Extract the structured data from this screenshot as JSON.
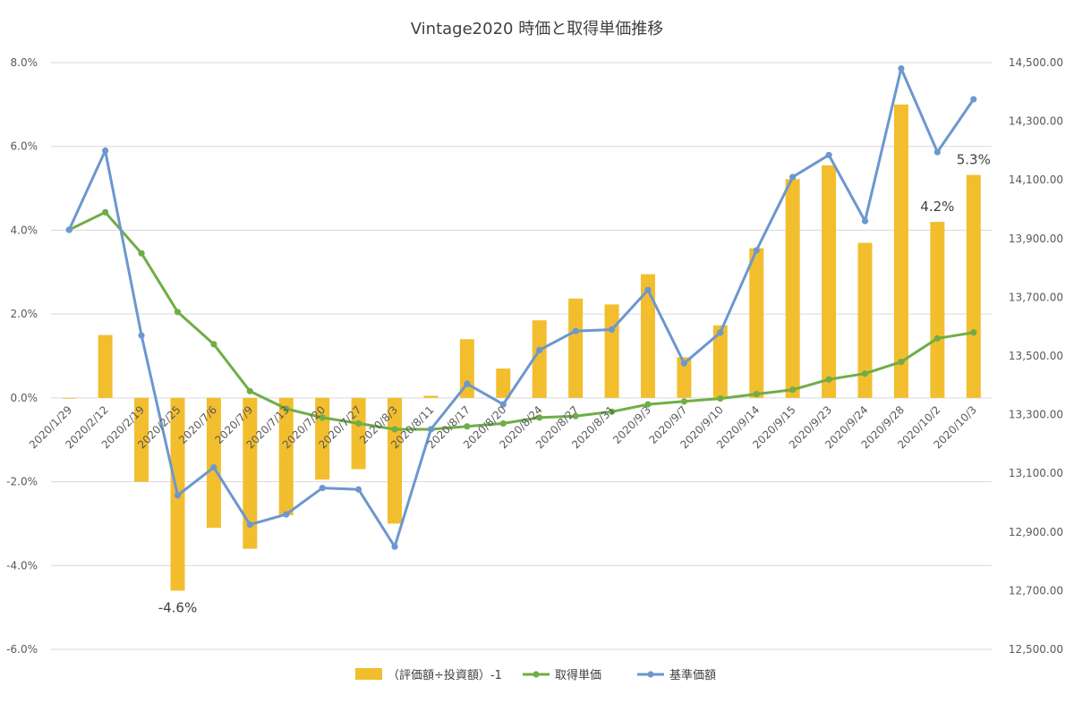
{
  "chart_data": {
    "type": "bar+line",
    "title": "Vintage2020 時価と取得単価推移",
    "categories": [
      "2020/1/29",
      "2020/2/12",
      "2020/2/19",
      "2020/2/25",
      "2020/7/6",
      "2020/7/9",
      "2020/7/13",
      "2020/7/20",
      "2020/7/27",
      "2020/8/3",
      "2020/8/11",
      "2020/8/17",
      "2020/8/20",
      "2020/8/24",
      "2020/8/27",
      "2020/8/31",
      "2020/9/3",
      "2020/9/7",
      "2020/9/10",
      "2020/9/14",
      "2020/9/15",
      "2020/9/23",
      "2020/9/24",
      "2020/9/28",
      "2020/10/2",
      "2020/10/3"
    ],
    "y_left": {
      "ticks": [
        "-6.0%",
        "-4.0%",
        "-2.0%",
        "0.0%",
        "2.0%",
        "4.0%",
        "6.0%",
        "8.0%"
      ],
      "min": -6,
      "max": 8,
      "unit": "%"
    },
    "y_right": {
      "ticks": [
        "12,500.00",
        "12,700.00",
        "12,900.00",
        "13,100.00",
        "13,300.00",
        "13,500.00",
        "13,700.00",
        "13,900.00",
        "14,100.00",
        "14,300.00",
        "14,500.00"
      ],
      "min": 12500,
      "max": 14500
    },
    "series": [
      {
        "name": "（評価額÷投資額）-1",
        "kind": "bar",
        "axis": "left",
        "color": "#F2BE2E",
        "values": [
          0.0,
          1.5,
          -2.0,
          -4.6,
          -3.1,
          -3.6,
          -2.8,
          -1.95,
          -1.7,
          -3.0,
          0.05,
          1.4,
          0.7,
          1.85,
          2.37,
          2.23,
          2.95,
          0.97,
          1.73,
          3.57,
          5.22,
          5.55,
          3.7,
          7.0,
          4.2,
          5.32
        ]
      },
      {
        "name": "取得単価",
        "kind": "line",
        "axis": "right",
        "color": "#70AD47",
        "values": [
          13930,
          13990,
          13850,
          13650,
          13540,
          13380,
          13320,
          13290,
          13270,
          13250,
          13250,
          13260,
          13270,
          13290,
          13295,
          13310,
          13335,
          13345,
          13355,
          13370,
          13385,
          13420,
          13440,
          13480,
          13560,
          13580
        ]
      },
      {
        "name": "基準価額",
        "kind": "line",
        "axis": "right",
        "color": "#6C97CF",
        "values": [
          13930,
          14200,
          13570,
          13025,
          13120,
          12925,
          12960,
          13050,
          13045,
          12850,
          13250,
          13405,
          13335,
          13520,
          13585,
          13590,
          13725,
          13475,
          13580,
          13860,
          14110,
          14185,
          13960,
          14480,
          14195,
          14375
        ]
      }
    ],
    "annotations": [
      {
        "text": "-4.6%",
        "category_index": 3,
        "series": 0
      },
      {
        "text": "4.2%",
        "category_index": 24,
        "series": 0
      },
      {
        "text": "5.3%",
        "category_index": 25,
        "series": 0
      }
    ],
    "legend": {
      "position": "bottom"
    },
    "grid": true
  }
}
